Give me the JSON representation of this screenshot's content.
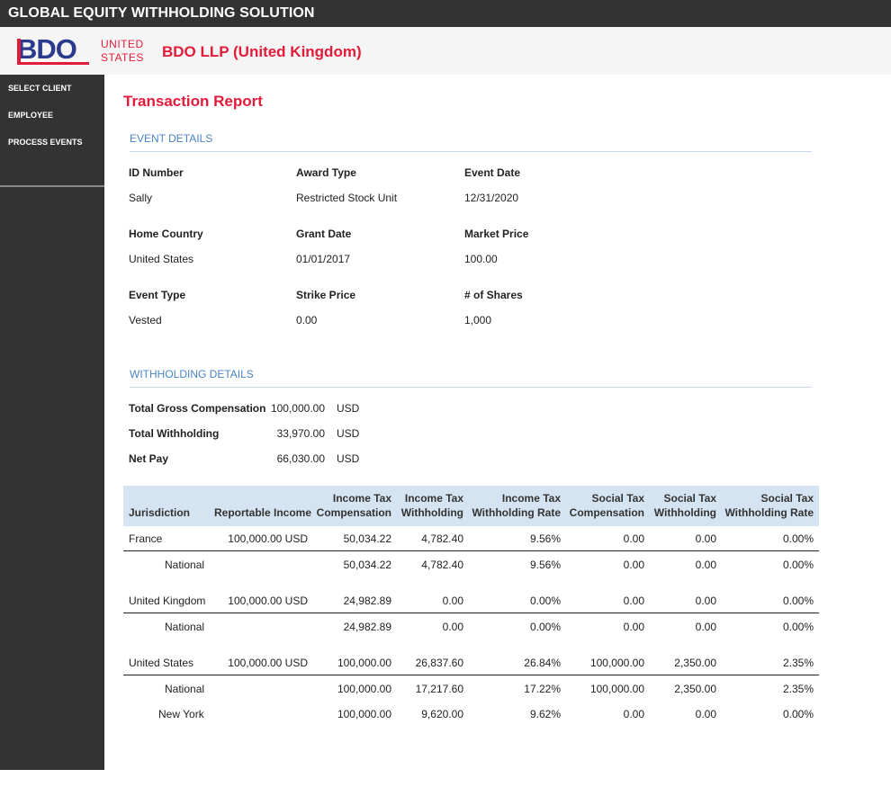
{
  "app_title": "GLOBAL EQUITY WITHHOLDING SOLUTION",
  "brand": {
    "logo_text": "BDO",
    "country_line1": "UNITED",
    "country_line2": "STATES",
    "company": "BDO LLP (United Kingdom)",
    "accent_color": "#e31b3a",
    "logo_color": "#2a3a8c"
  },
  "sidebar": {
    "items": [
      {
        "label": "SELECT CLIENT"
      },
      {
        "label": "EMPLOYEE"
      },
      {
        "label": "PROCESS EVENTS"
      }
    ]
  },
  "report": {
    "title": "Transaction Report",
    "event_details_heading": "EVENT DETAILS",
    "event": {
      "id_number_label": "ID Number",
      "id_number": "Sally",
      "award_type_label": "Award Type",
      "award_type": "Restricted Stock Unit",
      "event_date_label": "Event Date",
      "event_date": "12/31/2020",
      "home_country_label": "Home Country",
      "home_country": "United States",
      "grant_date_label": "Grant Date",
      "grant_date": "01/01/2017",
      "market_price_label": "Market Price",
      "market_price": "100.00",
      "event_type_label": "Event Type",
      "event_type": "Vested",
      "strike_price_label": "Strike Price",
      "strike_price": "0.00",
      "shares_label": "# of Shares",
      "shares": "1,000"
    },
    "withholding_heading": "WITHHOLDING DETAILS",
    "withholding": {
      "gross_label": "Total Gross Compensation",
      "gross": "100,000.00",
      "gross_cur": "USD",
      "total_label": "Total Withholding",
      "total": "33,970.00",
      "total_cur": "USD",
      "net_label": "Net Pay",
      "net": "66,030.00",
      "net_cur": "USD"
    },
    "table": {
      "headers": {
        "jurisdiction": "Jurisdiction",
        "reportable": "Reportable Income",
        "itc_1": "Income Tax",
        "itc_2": "Compensation",
        "itw_1": "Income Tax",
        "itw_2": "Withholding",
        "itr_1": "Income Tax",
        "itr_2": "Withholding Rate",
        "stc_1": "Social Tax",
        "stc_2": "Compensation",
        "stw_1": "Social Tax",
        "stw_2": "Withholding",
        "str_1": "Social Tax",
        "str_2": "Withholding Rate"
      },
      "rows": [
        {
          "jurisdiction": "France",
          "reportable": "100,000.00 USD",
          "itc": "50,034.22",
          "itw": "4,782.40",
          "itr": "9.56%",
          "stc": "0.00",
          "stw": "0.00",
          "str": "0.00%"
        },
        {
          "jurisdiction": "National",
          "reportable": "",
          "itc": "50,034.22",
          "itw": "4,782.40",
          "itr": "9.56%",
          "stc": "0.00",
          "stw": "0.00",
          "str": "0.00%"
        },
        {
          "jurisdiction": "United Kingdom",
          "reportable": "100,000.00 USD",
          "itc": "24,982.89",
          "itw": "0.00",
          "itr": "0.00%",
          "stc": "0.00",
          "stw": "0.00",
          "str": "0.00%"
        },
        {
          "jurisdiction": "National",
          "reportable": "",
          "itc": "24,982.89",
          "itw": "0.00",
          "itr": "0.00%",
          "stc": "0.00",
          "stw": "0.00",
          "str": "0.00%"
        },
        {
          "jurisdiction": "United States",
          "reportable": "100,000.00 USD",
          "itc": "100,000.00",
          "itw": "26,837.60",
          "itr": "26.84%",
          "stc": "100,000.00",
          "stw": "2,350.00",
          "str": "2.35%"
        },
        {
          "jurisdiction": "National",
          "reportable": "",
          "itc": "100,000.00",
          "itw": "17,217.60",
          "itr": "17.22%",
          "stc": "100,000.00",
          "stw": "2,350.00",
          "str": "2.35%"
        },
        {
          "jurisdiction": "New York",
          "reportable": "",
          "itc": "100,000.00",
          "itw": "9,620.00",
          "itr": "9.62%",
          "stc": "0.00",
          "stw": "0.00",
          "str": "0.00%"
        }
      ]
    }
  }
}
